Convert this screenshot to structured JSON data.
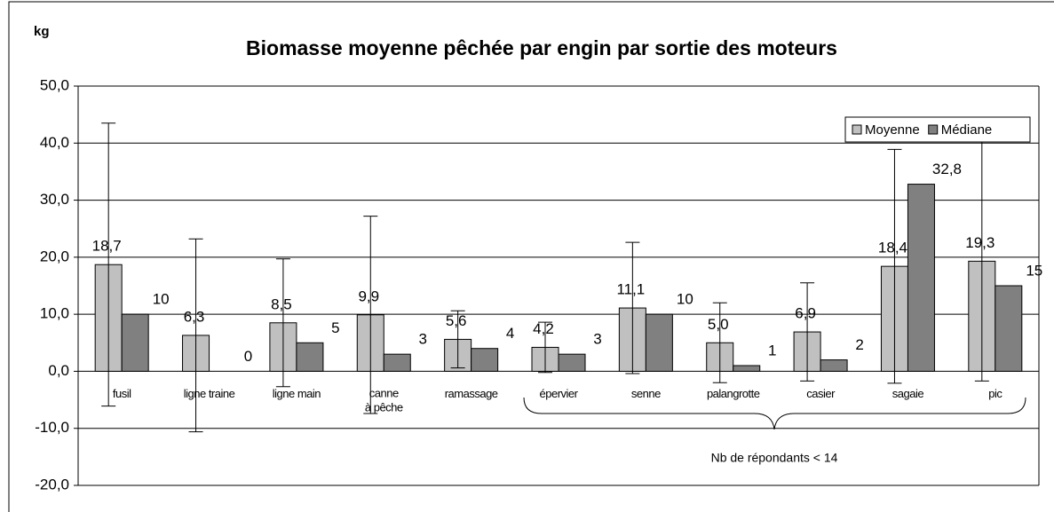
{
  "chart_data": {
    "type": "bar",
    "title": "Biomasse moyenne pêchée par engin par sortie des moteurs",
    "y_label": "kg",
    "categories": [
      "fusil",
      "ligne traine",
      "ligne main",
      "canne\nà pêche",
      "ramassage",
      "épervier",
      "senne",
      "palangrotte",
      "casier",
      "sagaie",
      "pic"
    ],
    "series": [
      {
        "name": "Moyenne",
        "color": "#c0c0c0",
        "values": [
          18.7,
          6.3,
          8.5,
          9.9,
          5.6,
          4.2,
          11.1,
          5.0,
          6.9,
          18.4,
          19.3
        ],
        "value_labels": [
          "18,7",
          "6,3",
          "8,5",
          "9,9",
          "5,6",
          "4,2",
          "11,1",
          "5,0",
          "6,9",
          "18,4",
          "19,3"
        ],
        "errors": [
          24.8,
          16.9,
          11.2,
          17.3,
          5.0,
          4.4,
          11.5,
          7.0,
          8.6,
          20.5,
          21.0
        ]
      },
      {
        "name": "Médiane",
        "color": "#808080",
        "values": [
          10,
          0,
          5,
          3,
          4,
          3,
          10,
          1,
          2,
          32.8,
          15
        ],
        "value_labels": [
          "10",
          "0",
          "5",
          "3",
          "4",
          "3",
          "10",
          "1",
          "2",
          "32,8",
          "15"
        ]
      }
    ],
    "ylim": [
      -20,
      50
    ],
    "yticks": [
      {
        "value": -20,
        "label": "-20,0"
      },
      {
        "value": -10,
        "label": "-10,0"
      },
      {
        "value": 0,
        "label": "0,0"
      },
      {
        "value": 10,
        "label": "10,0"
      },
      {
        "value": 20,
        "label": "20,0"
      },
      {
        "value": 30,
        "label": "30,0"
      },
      {
        "value": 40,
        "label": "40,0"
      },
      {
        "value": 50,
        "label": "50,0"
      }
    ],
    "grid": true,
    "legend": "top-right",
    "annotation": "Nb de répondants < 14"
  }
}
